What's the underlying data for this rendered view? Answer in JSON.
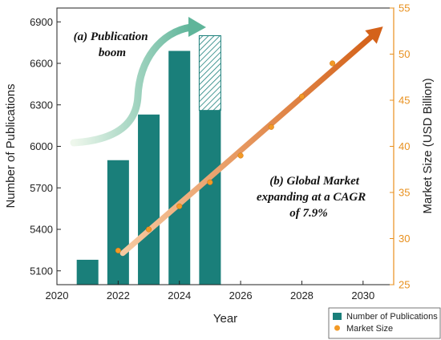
{
  "chart_data": {
    "type": "bar",
    "title": "",
    "xlabel": "Year",
    "ylabel_left": "Number of Publications",
    "ylabel_right": "Market Size (USD Billion)",
    "xlim": [
      2020,
      2031
    ],
    "ylim_left": [
      5000,
      7000
    ],
    "ylim_right": [
      25,
      55
    ],
    "x_ticks": [
      2020,
      2022,
      2024,
      2026,
      2028,
      2030
    ],
    "y_ticks_left": [
      5100,
      5400,
      5700,
      6000,
      6300,
      6600,
      6900
    ],
    "y_ticks_right": [
      25,
      30,
      35,
      40,
      45,
      50,
      55
    ],
    "grid": false,
    "legend_position": "bottom-right",
    "series": [
      {
        "name": "Number of Publications",
        "type": "bar",
        "axis": "left",
        "color": "#1a7f7a",
        "x": [
          2021,
          2022,
          2023,
          2024,
          2025
        ],
        "values": [
          5180,
          5900,
          6230,
          6690,
          6260
        ],
        "projected_top": [
          null,
          null,
          null,
          null,
          6800
        ]
      },
      {
        "name": "Market Size",
        "type": "scatter",
        "axis": "right",
        "color": "#f39a26",
        "x": [
          2022,
          2023,
          2024,
          2025,
          2026,
          2027,
          2028,
          2029
        ],
        "values": [
          28.7,
          31.0,
          33.5,
          36.1,
          39.0,
          42.1,
          45.4,
          49.0
        ]
      }
    ],
    "annotations": [
      {
        "lines": [
          "(a) Publication",
          "boom"
        ]
      },
      {
        "lines": [
          "(b) Global Market",
          "expanding at a CAGR",
          "of 7.9%"
        ]
      }
    ],
    "colors": {
      "bar": "#1a7f7a",
      "market_point": "#f39a26",
      "right_axis": "#e8901e",
      "trend_start": "#f7c9a0",
      "trend_end": "#d4621a",
      "curve_start": "#eef7ec",
      "curve_end": "#5fb59a"
    }
  }
}
